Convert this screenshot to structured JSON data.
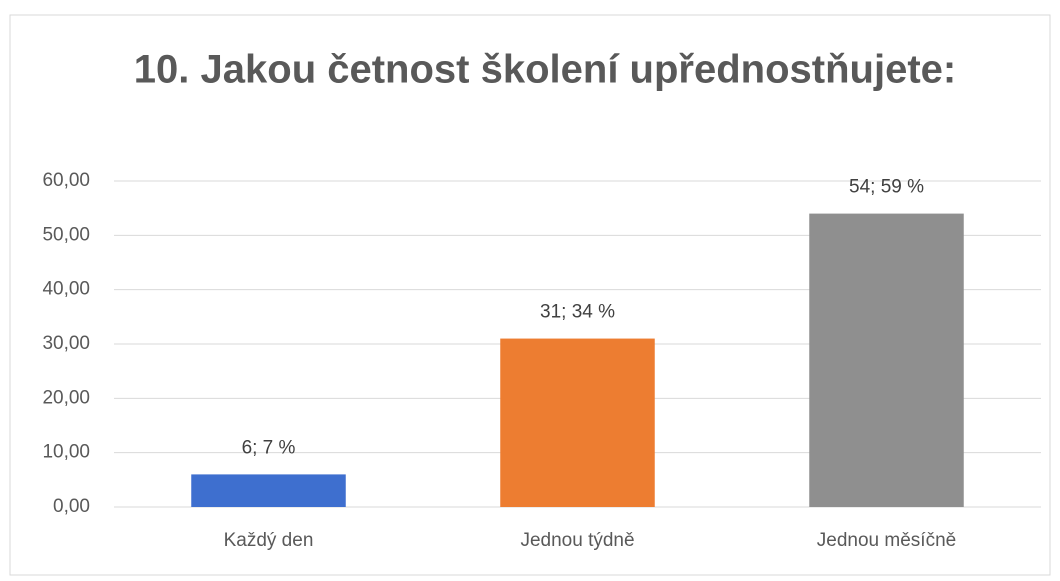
{
  "chart_data": {
    "type": "bar",
    "title": "10. Jakou četnost školení upřednostňujete:",
    "categories": [
      "Každý den",
      "Jednou týdně",
      "Jednou měsíčně"
    ],
    "values": [
      6,
      31,
      54
    ],
    "value_labels": [
      "6; 7 %",
      "31; 34 %",
      "54; 59 %"
    ],
    "colors": [
      "#3e6fcf",
      "#ed7d31",
      "#8f8f8f"
    ],
    "ylim": [
      0,
      60
    ],
    "yticks": [
      {
        "value": 0,
        "label": "0,00"
      },
      {
        "value": 10,
        "label": "10,00"
      },
      {
        "value": 20,
        "label": "20,00"
      },
      {
        "value": 30,
        "label": "30,00"
      },
      {
        "value": 40,
        "label": "40,00"
      },
      {
        "value": 50,
        "label": "50,00"
      },
      {
        "value": 60,
        "label": "60,00"
      }
    ],
    "grid": true
  }
}
